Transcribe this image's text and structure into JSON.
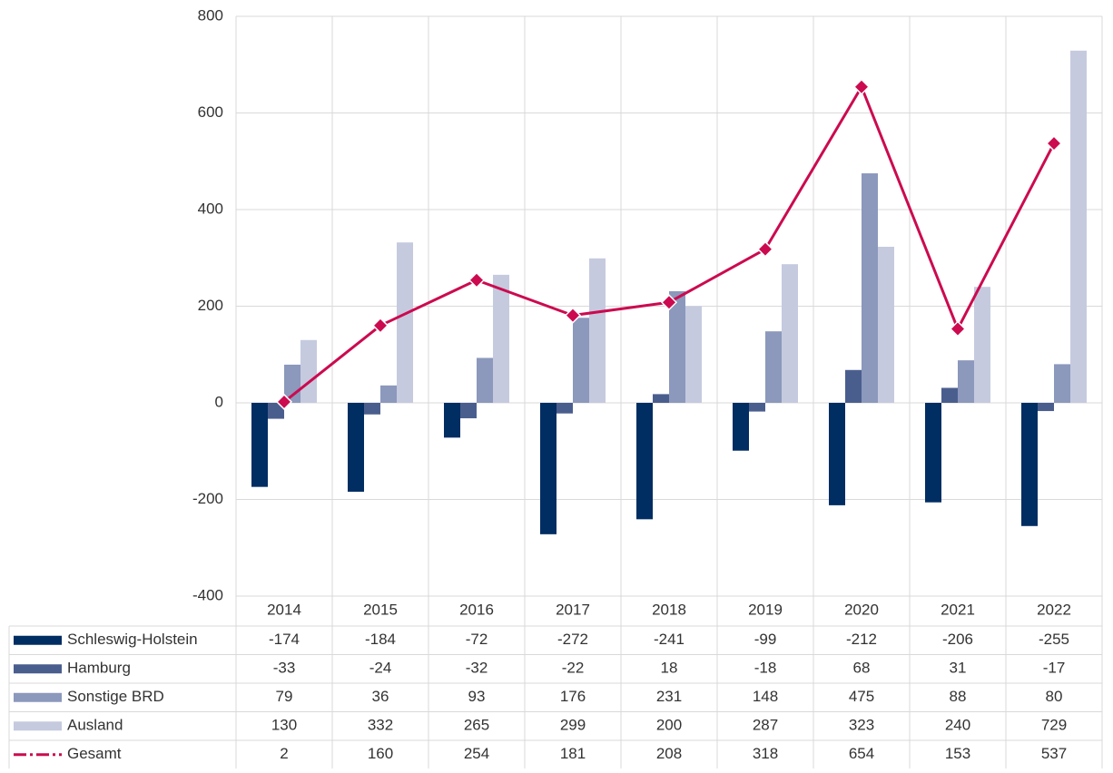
{
  "chart_data": {
    "type": "bar",
    "categories": [
      "2014",
      "2015",
      "2016",
      "2017",
      "2018",
      "2019",
      "2020",
      "2021",
      "2022"
    ],
    "series": [
      {
        "name": "Schleswig-Holstein",
        "color": "#002d62",
        "values": [
          -174,
          -184,
          -72,
          -272,
          -241,
          -99,
          -212,
          -206,
          -255
        ]
      },
      {
        "name": "Hamburg",
        "color": "#4a5e8e",
        "values": [
          -33,
          -24,
          -32,
          -22,
          18,
          -18,
          68,
          31,
          -17
        ]
      },
      {
        "name": "Sonstige BRD",
        "color": "#8c98bc",
        "values": [
          79,
          36,
          93,
          176,
          231,
          148,
          475,
          88,
          80
        ]
      },
      {
        "name": "Ausland",
        "color": "#c5cadf",
        "values": [
          130,
          332,
          265,
          299,
          200,
          287,
          323,
          240,
          729
        ]
      },
      {
        "name": "Gesamt",
        "color": "#cc0a4f",
        "type": "line",
        "values": [
          2,
          160,
          254,
          181,
          208,
          318,
          654,
          153,
          537
        ]
      }
    ],
    "ylim": [
      -400,
      800
    ],
    "yticks": [
      -400,
      -200,
      0,
      200,
      400,
      600,
      800
    ],
    "grid": true
  }
}
